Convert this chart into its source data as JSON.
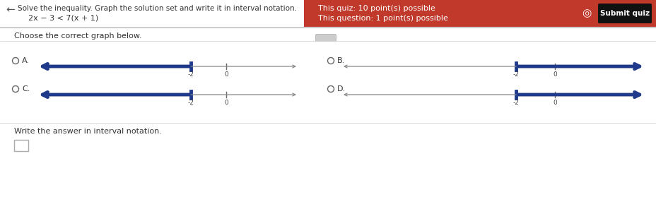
{
  "bg_left": "#ffffff",
  "bg_right": "#f0f0f0",
  "header_red": "#c0392b",
  "header_text1": "This quiz: 10 point(s) possible",
  "header_text2": "This question: 1 point(s) possible",
  "submit_text": "Submit quiz",
  "problem1": "Solve the inequality. Graph the solution set and write it in interval notation.",
  "problem2": "2x − 3 < 7(x + 1)",
  "choose_text": "Choose the correct graph below.",
  "write_text": "Write the answer in interval notation.",
  "graph_color": "#1f3a8a",
  "graph_lw": 3.5,
  "label_A": "A.",
  "label_B": "B.",
  "label_C": "C.",
  "label_D": "D.",
  "fig_w": 9.29,
  "fig_h": 2.86,
  "dpi": 100
}
